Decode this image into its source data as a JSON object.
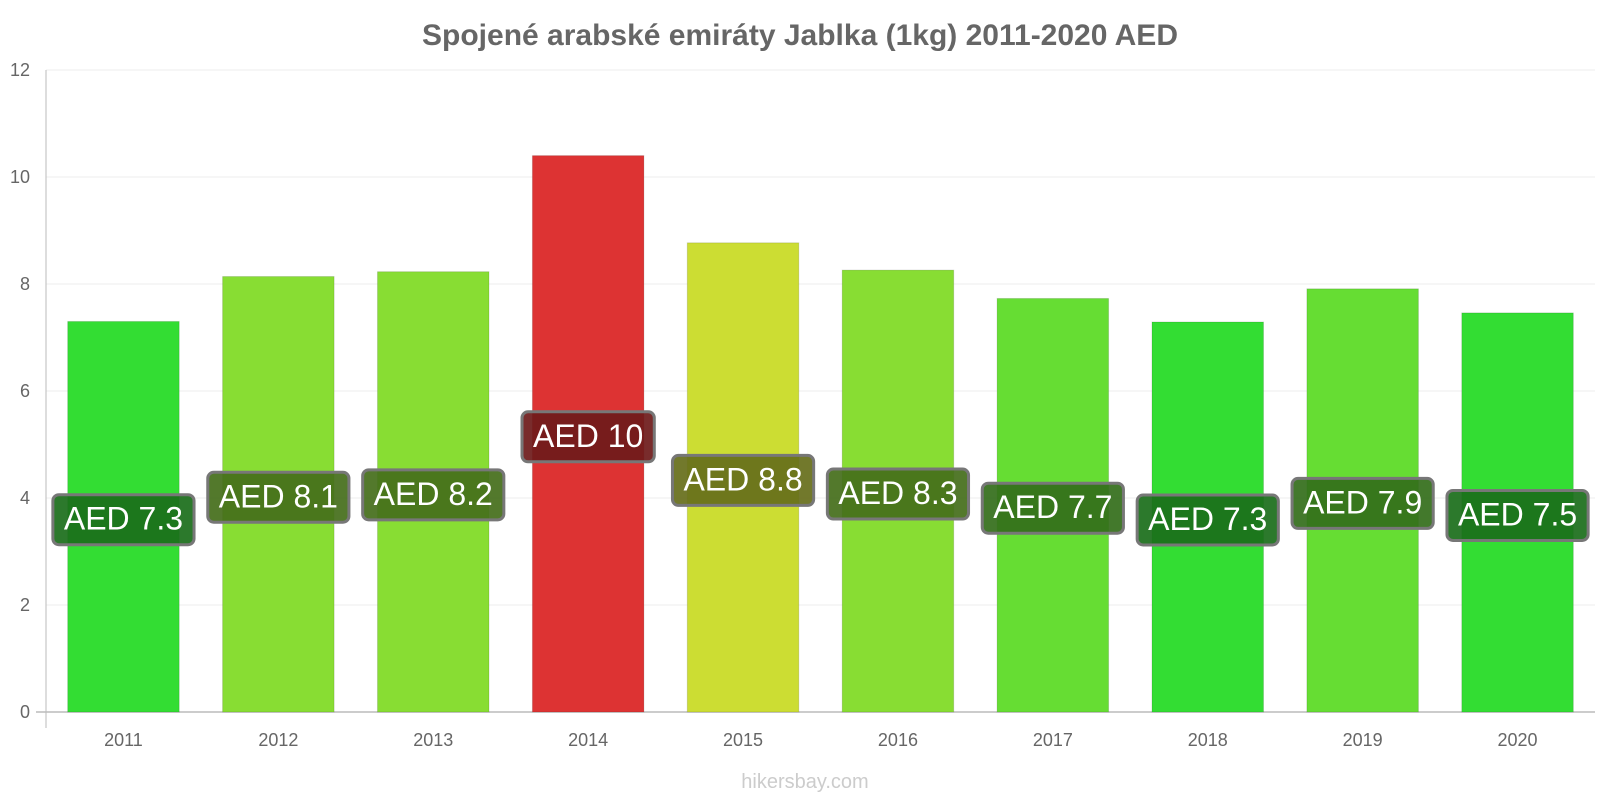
{
  "chart_data": {
    "type": "bar",
    "title": "Spojené arabské emiráty Jablka (1kg) 2011-2020 AED",
    "xlabel": "",
    "ylabel": "",
    "ylim": [
      0,
      12
    ],
    "yticks": [
      0,
      2,
      4,
      6,
      8,
      10,
      12
    ],
    "grid": true,
    "categories": [
      "2011",
      "2012",
      "2013",
      "2014",
      "2015",
      "2016",
      "2017",
      "2018",
      "2019",
      "2020"
    ],
    "values": [
      7.3,
      8.14,
      8.23,
      10.4,
      8.77,
      8.26,
      7.73,
      7.29,
      7.91,
      7.46
    ],
    "data_labels": [
      "AED 7.3",
      "AED 8.1",
      "AED 8.2",
      "AED 10",
      "AED 8.8",
      "AED 8.3",
      "AED 7.7",
      "AED 7.3",
      "AED 7.9",
      "AED 7.5"
    ],
    "bar_colors": [
      "#33dd33",
      "#88dd33",
      "#88dd33",
      "#dd3333",
      "#ccdd33",
      "#88dd33",
      "#66dd33",
      "#33dd33",
      "#66dd33",
      "#33dd33"
    ],
    "label_bg_colors": [
      "#1a6e1a",
      "#446e1a",
      "#446e1a",
      "#6e1a1a",
      "#666e1a",
      "#446e1a",
      "#336e1a",
      "#1a6e1a",
      "#336e1a",
      "#1a6e1a"
    ]
  },
  "watermark": "hikersbay.com"
}
